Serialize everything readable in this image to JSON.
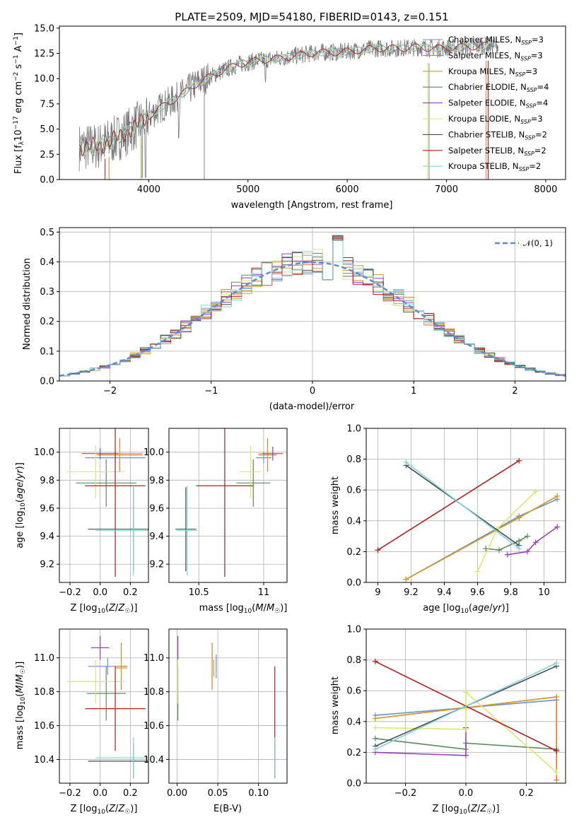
{
  "colors": [
    "#6a8fd8",
    "#e8782c",
    "#c9a227",
    "#5b8a5b",
    "#9b3fb5",
    "#d9e86a",
    "#4a4a4a",
    "#b31b1b",
    "#7fd3dc"
  ],
  "models": [
    {
      "name": "Chabrier MILES",
      "n": "3"
    },
    {
      "name": "Salpeter MILES",
      "n": "3"
    },
    {
      "name": "Kroupa MILES",
      "n": "3"
    },
    {
      "name": "Chabrier ELODIE",
      "n": "4"
    },
    {
      "name": "Salpeter ELODIE",
      "n": "4"
    },
    {
      "name": "Kroupa ELODIE",
      "n": "3"
    },
    {
      "name": "Chabrier STELIB",
      "n": "2"
    },
    {
      "name": "Salpeter STELIB",
      "n": "2"
    },
    {
      "name": "Kroupa STELIB",
      "n": "2"
    }
  ],
  "chart_data": [
    {
      "id": "spectrum",
      "type": "line",
      "title": "PLATE=2509, MJD=54180, FIBERID=0143, z=0.151",
      "xlabel": "wavelength [Angstrom, rest frame]",
      "ylabel": "Flux [f_λ10^-17 erg cm^-2 s^-1 A^-1]",
      "xlim": [
        3100,
        8200
      ],
      "ylim": [
        0,
        15.2
      ],
      "xticks": [
        4000,
        5000,
        6000,
        7000,
        8000
      ],
      "yticks": [
        0.0,
        2.5,
        5.0,
        7.5,
        10.0,
        12.5,
        15.0
      ],
      "continuum": {
        "x": [
          3300,
          3500,
          3700,
          3900,
          4100,
          4300,
          4500,
          4700,
          4900,
          5100,
          5300,
          5500,
          5700,
          5900,
          6100,
          6300,
          6500,
          6700,
          6900,
          7100,
          7300,
          7450,
          7600,
          7800,
          8000
        ],
        "y": [
          3.2,
          3.3,
          4.2,
          5.5,
          7.0,
          8.2,
          9.6,
          10.6,
          11.4,
          11.8,
          12.0,
          12.3,
          12.6,
          12.6,
          12.8,
          13.0,
          13.0,
          13.1,
          13.0,
          13.1,
          13.2,
          13.3,
          13.3,
          13.5,
          13.5
        ]
      },
      "legend": "right"
    },
    {
      "id": "residuals",
      "type": "step",
      "xlabel": "(data-model)/error",
      "ylabel": "Normed distribution",
      "xlim": [
        -2.5,
        2.5
      ],
      "ylim": [
        0,
        0.515
      ],
      "xticks": [
        -2,
        -1,
        0,
        1,
        2
      ],
      "xticklabels": [
        "−2",
        "−1",
        "0",
        "1",
        "2"
      ],
      "yticks": [
        0.0,
        0.1,
        0.2,
        0.3,
        0.4,
        0.5
      ],
      "legend": [
        "𝒩(0, 1)"
      ],
      "legend_position": "top-right"
    },
    {
      "id": "age_vs_Z",
      "type": "errorbar",
      "xlabel": "Z [log₁₀(Z/Z☉)]",
      "ylabel": "age  [log₁₀(age/yr)]",
      "xlim": [
        -0.27,
        0.32
      ],
      "ylim": [
        9.07,
        10.17
      ],
      "xticks": [
        -0.2,
        0.0,
        0.2
      ],
      "xticklabels": [
        "−0.2",
        "0.0",
        "0.2"
      ],
      "yticks": [
        9.2,
        9.4,
        9.6,
        9.8,
        10.0
      ],
      "points": [
        {
          "x": 0.1,
          "xe": 0.2,
          "y": 9.96,
          "ye": 0.04
        },
        {
          "x": 0.13,
          "xe": 0.15,
          "y": 9.98,
          "ye": 0.12
        },
        {
          "x": 0.13,
          "xe": 0.15,
          "y": 9.99,
          "ye": 0.04
        },
        {
          "x": 0.04,
          "xe": 0.2,
          "y": 9.78,
          "ye": 0.17
        },
        {
          "x": 0.0,
          "xe": 0.12,
          "y": 9.99,
          "ye": 0.04
        },
        {
          "x": -0.03,
          "xe": 0.19,
          "y": 9.86,
          "ye": 0.19
        },
        {
          "x": 0.22,
          "xe": 0.3,
          "y": 9.45,
          "ye": 0.3
        },
        {
          "x": 0.1,
          "xe": 0.2,
          "y": 9.76,
          "ye": 0.65
        },
        {
          "x": 0.22,
          "xe": 0.25,
          "y": 9.44,
          "ye": 0.32
        }
      ]
    },
    {
      "id": "age_vs_mass",
      "type": "errorbar",
      "xlabel": "mass [log₁₀(M/M☉)]",
      "ylabel": "",
      "xlim": [
        10.27,
        11.18
      ],
      "ylim": [
        9.07,
        10.17
      ],
      "xticks": [
        10.5,
        11.0
      ],
      "yticks": [
        9.2,
        9.4,
        9.6,
        9.8,
        10.0
      ],
      "points": [
        {
          "x": 11.0,
          "xe": 0.06,
          "y": 9.96,
          "ye": 0.04
        },
        {
          "x": 11.03,
          "xe": 0.07,
          "y": 9.98,
          "ye": 0.12
        },
        {
          "x": 11.03,
          "xe": 0.07,
          "y": 9.99,
          "ye": 0.05
        },
        {
          "x": 10.92,
          "xe": 0.13,
          "y": 9.78,
          "ye": 0.17
        },
        {
          "x": 11.07,
          "xe": 0.08,
          "y": 9.99,
          "ye": 0.05
        },
        {
          "x": 10.9,
          "xe": 0.08,
          "y": 9.86,
          "ye": 0.19
        },
        {
          "x": 10.4,
          "xe": 0.08,
          "y": 9.45,
          "ye": 0.3
        },
        {
          "x": 10.7,
          "xe": 0.22,
          "y": 9.76,
          "ye": 0.65
        },
        {
          "x": 10.41,
          "xe": 0.08,
          "y": 9.44,
          "ye": 0.32
        }
      ]
    },
    {
      "id": "mw_vs_age",
      "type": "line",
      "xlabel": "age  [log₁₀(age/yr)]",
      "ylabel": "mass weight",
      "xlim": [
        8.93,
        10.13
      ],
      "ylim": [
        0,
        1
      ],
      "xticks": [
        9.0,
        9.2,
        9.4,
        9.6,
        9.8,
        10.0
      ],
      "yticks": [
        0.0,
        0.2,
        0.4,
        0.6,
        0.8,
        1.0
      ],
      "series": [
        {
          "x": [
            9.17,
            9.85,
            10.08
          ],
          "y": [
            0.02,
            0.43,
            0.54
          ]
        },
        {
          "x": [
            9.17,
            9.85,
            10.08
          ],
          "y": [
            0.02,
            0.42,
            0.56
          ]
        },
        {
          "x": [
            9.17,
            9.85,
            10.08
          ],
          "y": [
            0.02,
            0.42,
            0.56
          ]
        },
        {
          "x": [
            9.65,
            9.73,
            9.85,
            9.9
          ],
          "y": [
            0.22,
            0.21,
            0.27,
            0.3
          ]
        },
        {
          "x": [
            9.78,
            9.9,
            9.95,
            10.08
          ],
          "y": [
            0.18,
            0.2,
            0.26,
            0.36
          ]
        },
        {
          "x": [
            9.6,
            9.72,
            9.95
          ],
          "y": [
            0.07,
            0.35,
            0.59
          ]
        },
        {
          "x": [
            9.17,
            9.85
          ],
          "y": [
            0.76,
            0.24
          ]
        },
        {
          "x": [
            9.0,
            9.85
          ],
          "y": [
            0.21,
            0.79
          ]
        },
        {
          "x": [
            9.17,
            9.85
          ],
          "y": [
            0.78,
            0.22
          ]
        }
      ]
    },
    {
      "id": "mass_vs_Z",
      "type": "errorbar",
      "xlabel": "Z [log₁₀(Z/Z☉)]",
      "ylabel": "mass [log₁₀(M/M☉)]",
      "xlim": [
        -0.27,
        0.32
      ],
      "ylim": [
        10.26,
        11.17
      ],
      "xticks": [
        -0.2,
        0.0,
        0.2
      ],
      "xticklabels": [
        "−0.2",
        "0.0",
        "0.2"
      ],
      "yticks": [
        10.4,
        10.6,
        10.8,
        11.0
      ],
      "points": [
        {
          "x": 0.05,
          "xe": 0.13,
          "y": 10.95,
          "ye": 0.05
        },
        {
          "x": 0.14,
          "xe": 0.04,
          "y": 10.95,
          "ye": 0.14
        },
        {
          "x": 0.14,
          "xe": 0.04,
          "y": 10.94,
          "ye": 0.05
        },
        {
          "x": 0.04,
          "xe": 0.13,
          "y": 10.79,
          "ye": 0.16
        },
        {
          "x": 0.0,
          "xe": 0.06,
          "y": 11.06,
          "ye": 0.07
        },
        {
          "x": -0.03,
          "xe": 0.19,
          "y": 10.86,
          "ye": 0.13
        },
        {
          "x": 0.22,
          "xe": 0.3,
          "y": 10.39,
          "ye": 0.1
        },
        {
          "x": 0.1,
          "xe": 0.2,
          "y": 10.7,
          "ye": 0.25
        },
        {
          "x": 0.22,
          "xe": 0.25,
          "y": 10.41,
          "ye": 0.12
        }
      ]
    },
    {
      "id": "mass_vs_ebv",
      "type": "errorbar",
      "xlabel": "E(B-V)",
      "ylabel": "",
      "xlim": [
        -0.01,
        0.135
      ],
      "ylim": [
        10.26,
        11.17
      ],
      "xticks": [
        0.0,
        0.05,
        0.1
      ],
      "xticklabels": [
        "0.00",
        "0.05",
        "0.10"
      ],
      "yticks": [
        10.4,
        10.6,
        10.8,
        11.0
      ],
      "points": [
        {
          "x": 0.048,
          "y": 10.95,
          "ye": 0.07
        },
        {
          "x": 0.043,
          "y": 10.95,
          "ye": 0.14
        },
        {
          "x": 0.045,
          "y": 10.94,
          "ye": 0.05
        },
        {
          "x": 0.001,
          "y": 10.79,
          "ye": 0.16
        },
        {
          "x": 0.001,
          "y": 11.06,
          "ye": 0.07
        },
        {
          "x": 0.001,
          "y": 10.86,
          "ye": 0.13
        },
        {
          "x": 0.12,
          "y": 10.39,
          "ye": 0.1
        },
        {
          "x": 0.12,
          "y": 10.7,
          "ye": 0.25
        },
        {
          "x": 0.12,
          "y": 10.41,
          "ye": 0.12
        }
      ]
    },
    {
      "id": "mw_vs_Z",
      "type": "line",
      "xlabel": "Z [log₁₀(Z/Z☉)]",
      "ylabel": "mass weight",
      "xlim": [
        -0.33,
        0.33
      ],
      "ylim": [
        0,
        1
      ],
      "xticks": [
        -0.2,
        0.0,
        0.2
      ],
      "xticklabels": [
        "−0.2",
        "0.0",
        "0.2"
      ],
      "yticks": [
        0.0,
        0.2,
        0.4,
        0.6,
        0.8,
        1.0
      ],
      "series": [
        {
          "x": [
            -0.3,
            0.0,
            0.3
          ],
          "y": [
            0.44,
            0.49,
            0.54
          ]
        },
        {
          "x": [
            -0.3,
            0.0,
            0.3,
            0.3
          ],
          "y": [
            0.42,
            0.49,
            0.56,
            0.02
          ]
        },
        {
          "x": [
            -0.3,
            0.0,
            0.3
          ],
          "y": [
            0.42,
            0.49,
            0.56
          ]
        },
        {
          "x": [
            -0.3,
            0.0,
            0.0,
            0.3
          ],
          "y": [
            0.29,
            0.22,
            0.26,
            0.22
          ]
        },
        {
          "x": [
            -0.3,
            0.0,
            0.0
          ],
          "y": [
            0.2,
            0.18,
            0.36
          ]
        },
        {
          "x": [
            -0.3,
            0.0,
            0.0,
            0.3
          ],
          "y": [
            0.36,
            0.35,
            0.59,
            0.07
          ]
        },
        {
          "x": [
            -0.3,
            0.3
          ],
          "y": [
            0.24,
            0.76
          ]
        },
        {
          "x": [
            -0.3,
            0.3,
            0.3
          ],
          "y": [
            0.79,
            0.21,
            0.21
          ]
        },
        {
          "x": [
            -0.3,
            0.3
          ],
          "y": [
            0.22,
            0.78
          ]
        }
      ]
    }
  ]
}
